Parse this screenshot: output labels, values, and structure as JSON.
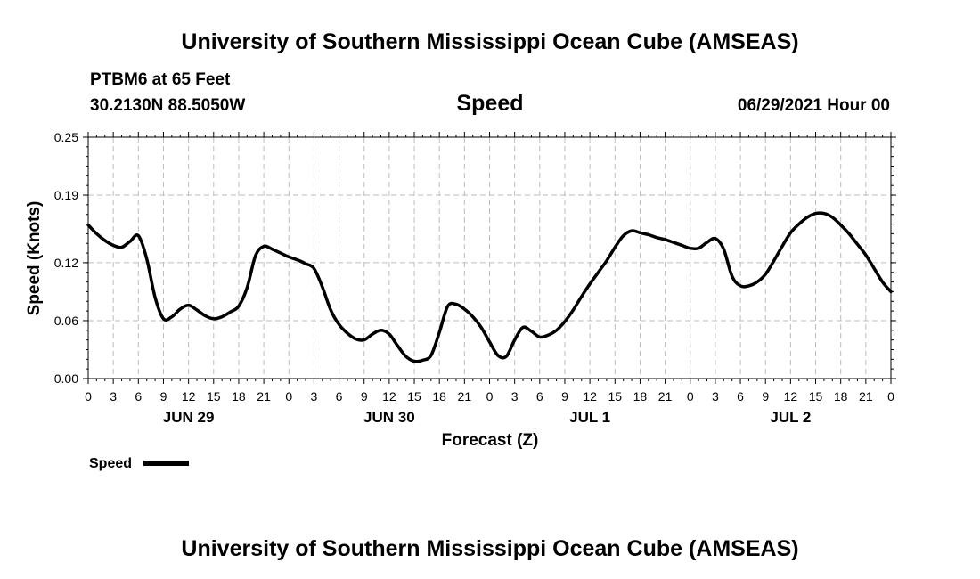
{
  "header": {
    "title": "University of Southern Mississippi Ocean Cube (AMSEAS)",
    "station": "PTBM6 at 65 Feet",
    "location": "30.2130N  88.5050W",
    "variable": "Speed",
    "datetime": "06/29/2021 Hour 00"
  },
  "footer": {
    "title": "University of Southern Mississippi Ocean Cube (AMSEAS)"
  },
  "chart_data": {
    "type": "line",
    "title": "Speed",
    "xlabel": "Forecast (Z)",
    "ylabel": "Speed (Knots)",
    "xlim": [
      0,
      96
    ],
    "ylim": [
      0,
      0.25
    ],
    "y_ticks": [
      0.0,
      0.06,
      0.12,
      0.19,
      0.25
    ],
    "y_tick_labels": [
      "0.00",
      "0.06",
      "0.12",
      "0.19",
      "0.25"
    ],
    "x_tick_hours": [
      0,
      3,
      6,
      9,
      12,
      15,
      18,
      21,
      24,
      27,
      30,
      33,
      36,
      39,
      42,
      45,
      48,
      51,
      54,
      57,
      60,
      63,
      66,
      69,
      72,
      75,
      78,
      81,
      84,
      87,
      90,
      93,
      96
    ],
    "x_tick_labels": [
      "0",
      "3",
      "6",
      "9",
      "12",
      "15",
      "18",
      "21",
      "0",
      "3",
      "6",
      "9",
      "12",
      "15",
      "18",
      "21",
      "0",
      "3",
      "6",
      "9",
      "12",
      "15",
      "18",
      "21",
      "0",
      "3",
      "6",
      "9",
      "12",
      "15",
      "18",
      "21",
      "0"
    ],
    "date_labels": [
      {
        "hour": 12,
        "label": "JUN 29"
      },
      {
        "hour": 36,
        "label": "JUN 30"
      },
      {
        "hour": 60,
        "label": "JUL 1"
      },
      {
        "hour": 84,
        "label": "JUL 2"
      }
    ],
    "grid": true,
    "legend": {
      "position": "bottom-left",
      "label": "Speed"
    },
    "series": [
      {
        "name": "Speed",
        "color": "#000000",
        "x": [
          0,
          1,
          2,
          3,
          4,
          5,
          6,
          7,
          8,
          9,
          10,
          11,
          12,
          13,
          14,
          15,
          16,
          17,
          18,
          19,
          20,
          21,
          22,
          23,
          24,
          25,
          26,
          27,
          28,
          29,
          30,
          31,
          32,
          33,
          34,
          35,
          36,
          37,
          38,
          39,
          40,
          41,
          42,
          43,
          44,
          45,
          46,
          47,
          48,
          49,
          50,
          51,
          52,
          53,
          54,
          55,
          56,
          57,
          58,
          59,
          60,
          61,
          62,
          63,
          64,
          65,
          66,
          67,
          68,
          69,
          70,
          71,
          72,
          73,
          74,
          75,
          76,
          77,
          78,
          79,
          80,
          81,
          82,
          83,
          84,
          85,
          86,
          87,
          88,
          89,
          90,
          91,
          92,
          93,
          94,
          95,
          96
        ],
        "values": [
          0.159,
          0.15,
          0.143,
          0.138,
          0.136,
          0.142,
          0.148,
          0.124,
          0.084,
          0.062,
          0.064,
          0.072,
          0.076,
          0.071,
          0.065,
          0.062,
          0.064,
          0.069,
          0.075,
          0.094,
          0.127,
          0.137,
          0.134,
          0.13,
          0.126,
          0.123,
          0.119,
          0.114,
          0.095,
          0.071,
          0.056,
          0.047,
          0.041,
          0.04,
          0.046,
          0.05,
          0.046,
          0.034,
          0.023,
          0.018,
          0.019,
          0.024,
          0.048,
          0.075,
          0.077,
          0.072,
          0.064,
          0.053,
          0.038,
          0.024,
          0.023,
          0.04,
          0.053,
          0.049,
          0.043,
          0.045,
          0.05,
          0.059,
          0.071,
          0.085,
          0.098,
          0.11,
          0.122,
          0.136,
          0.148,
          0.153,
          0.151,
          0.149,
          0.146,
          0.144,
          0.141,
          0.138,
          0.135,
          0.135,
          0.141,
          0.145,
          0.134,
          0.106,
          0.096,
          0.096,
          0.1,
          0.108,
          0.122,
          0.137,
          0.151,
          0.16,
          0.167,
          0.171,
          0.171,
          0.167,
          0.159,
          0.15,
          0.139,
          0.128,
          0.114,
          0.1,
          0.09
        ]
      }
    ]
  }
}
